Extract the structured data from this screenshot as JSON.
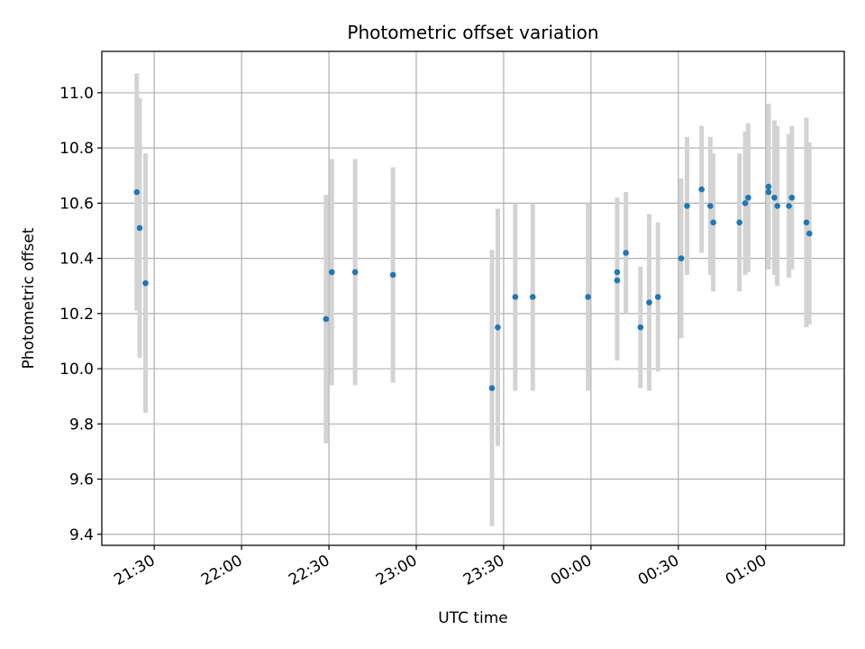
{
  "chart_data": {
    "type": "scatter",
    "title": "Photometric offset variation",
    "xlabel": "UTC time",
    "ylabel": "Photometric offset",
    "ylim": [
      9.36,
      11.15
    ],
    "xlim": [
      "21:12",
      "01:27"
    ],
    "grid": true,
    "colors": {
      "marker": "#1f77b4",
      "errorbar": "#d3d3d3"
    },
    "x_ticks": [
      "21:30",
      "22:00",
      "22:30",
      "23:00",
      "23:30",
      "00:00",
      "00:30",
      "01:00"
    ],
    "y_ticks": [
      "9.4",
      "9.6",
      "9.8",
      "10.0",
      "10.2",
      "10.4",
      "10.6",
      "10.8",
      "11.0"
    ],
    "points": [
      {
        "t": "21:24",
        "y": 10.64,
        "err": 0.43
      },
      {
        "t": "21:25",
        "y": 10.51,
        "err": 0.47
      },
      {
        "t": "21:27",
        "y": 10.31,
        "err": 0.47
      },
      {
        "t": "22:29",
        "y": 10.18,
        "err": 0.45
      },
      {
        "t": "22:31",
        "y": 10.35,
        "err": 0.41
      },
      {
        "t": "22:39",
        "y": 10.35,
        "err": 0.41
      },
      {
        "t": "22:52",
        "y": 10.34,
        "err": 0.39
      },
      {
        "t": "23:26",
        "y": 9.93,
        "err": 0.5
      },
      {
        "t": "23:28",
        "y": 10.15,
        "err": 0.43
      },
      {
        "t": "23:34",
        "y": 10.26,
        "err": 0.34
      },
      {
        "t": "23:40",
        "y": 10.26,
        "err": 0.34
      },
      {
        "t": "23:59",
        "y": 10.26,
        "err": 0.34
      },
      {
        "t": "00:09",
        "y": 10.32,
        "err": 0.29
      },
      {
        "t": "00:09",
        "y": 10.35,
        "err": 0.27
      },
      {
        "t": "00:12",
        "y": 10.42,
        "err": 0.22
      },
      {
        "t": "00:17",
        "y": 10.15,
        "err": 0.22
      },
      {
        "t": "00:20",
        "y": 10.24,
        "err": 0.32
      },
      {
        "t": "00:23",
        "y": 10.26,
        "err": 0.27
      },
      {
        "t": "00:31",
        "y": 10.4,
        "err": 0.29
      },
      {
        "t": "00:33",
        "y": 10.59,
        "err": 0.25
      },
      {
        "t": "00:38",
        "y": 10.65,
        "err": 0.23
      },
      {
        "t": "00:41",
        "y": 10.59,
        "err": 0.25
      },
      {
        "t": "00:42",
        "y": 10.53,
        "err": 0.25
      },
      {
        "t": "00:51",
        "y": 10.53,
        "err": 0.25
      },
      {
        "t": "00:53",
        "y": 10.6,
        "err": 0.26
      },
      {
        "t": "00:54",
        "y": 10.62,
        "err": 0.27
      },
      {
        "t": "01:01",
        "y": 10.66,
        "err": 0.3
      },
      {
        "t": "01:01",
        "y": 10.64,
        "err": 0.27
      },
      {
        "t": "01:03",
        "y": 10.62,
        "err": 0.28
      },
      {
        "t": "01:04",
        "y": 10.59,
        "err": 0.29
      },
      {
        "t": "01:08",
        "y": 10.59,
        "err": 0.26
      },
      {
        "t": "01:09",
        "y": 10.62,
        "err": 0.26
      },
      {
        "t": "01:14",
        "y": 10.53,
        "err": 0.38
      },
      {
        "t": "01:15",
        "y": 10.49,
        "err": 0.33
      }
    ]
  }
}
